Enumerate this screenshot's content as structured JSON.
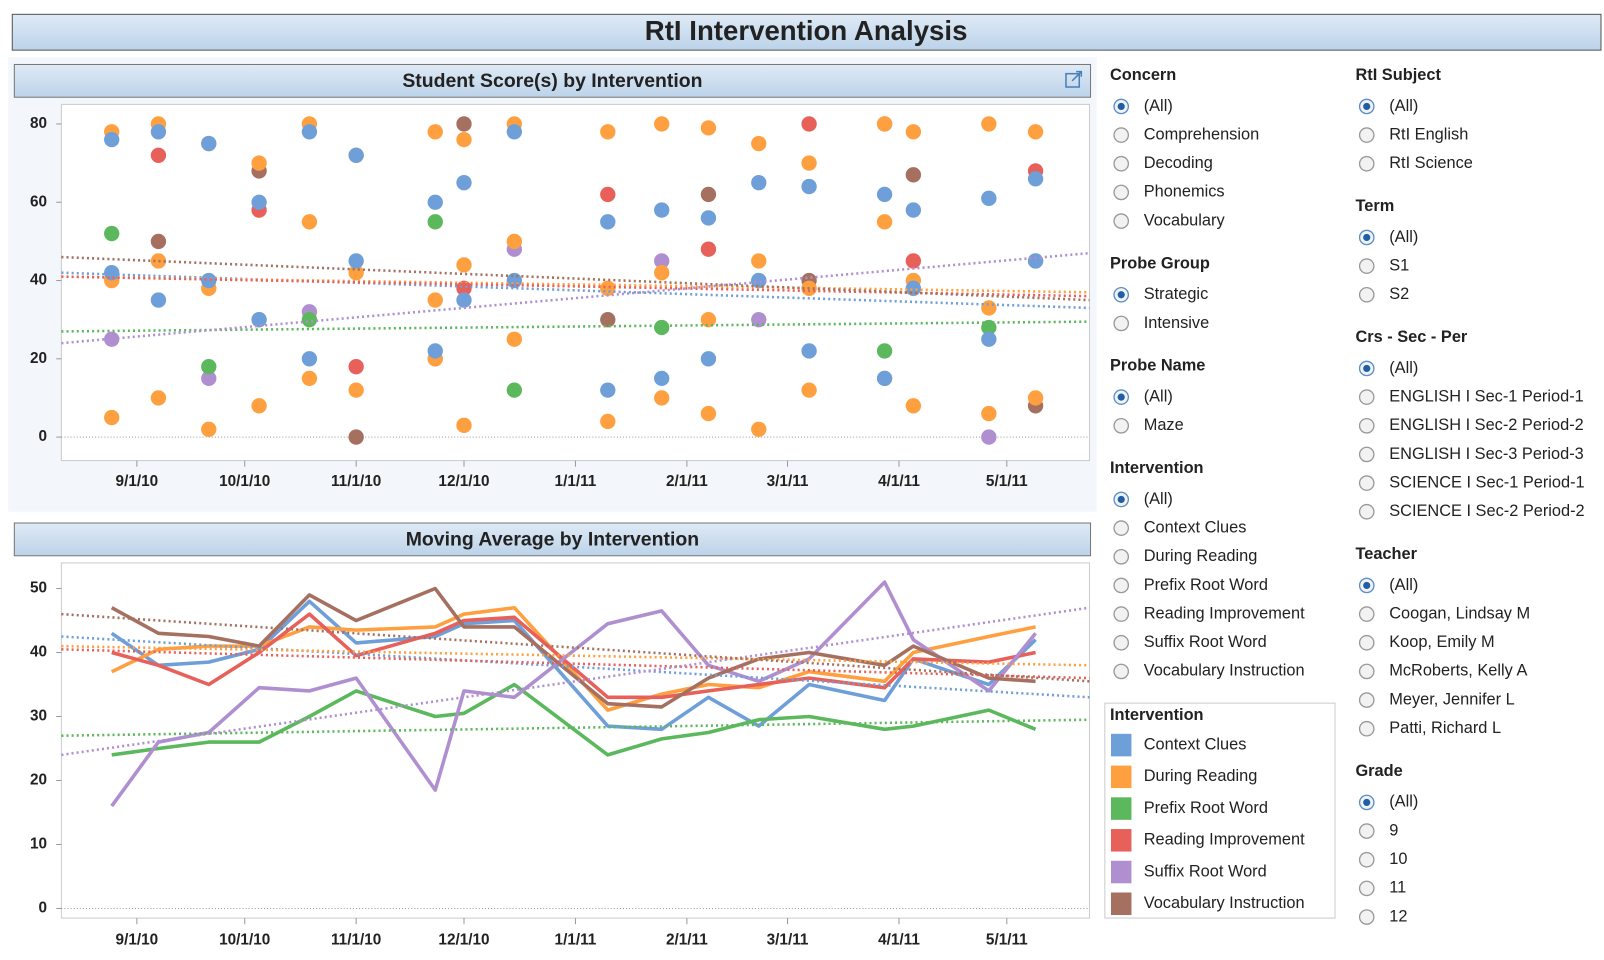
{
  "title": "RtI Intervention Analysis",
  "chart_data": [
    {
      "type": "scatter",
      "title": "Student Score(s) by Intervention",
      "xlim": [
        "2010-08-11",
        "2011-05-24"
      ],
      "xticks": [
        {
          "value": "2010-09-01",
          "label": "9/1/10"
        },
        {
          "value": "2010-10-01",
          "label": "10/1/10"
        },
        {
          "value": "2010-11-01",
          "label": "11/1/10"
        },
        {
          "value": "2010-12-01",
          "label": "12/1/10"
        },
        {
          "value": "2011-01-01",
          "label": "1/1/11"
        },
        {
          "value": "2011-02-01",
          "label": "2/1/11"
        },
        {
          "value": "2011-03-01",
          "label": "3/1/11"
        },
        {
          "value": "2011-04-01",
          "label": "4/1/11"
        },
        {
          "value": "2011-05-01",
          "label": "5/1/11"
        }
      ],
      "ylim": [
        -6,
        85
      ],
      "yticks": [
        0,
        20,
        40,
        60,
        80
      ],
      "series": [
        {
          "color": "#6f9fd8",
          "trend": [
            42,
            33
          ],
          "x": [
            "2010-08-25",
            "2010-08-25",
            "2010-09-07",
            "2010-09-07",
            "2010-09-21",
            "2010-09-21",
            "2010-10-05",
            "2010-10-05",
            "2010-10-19",
            "2010-10-19",
            "2010-11-01",
            "2010-11-01",
            "2010-11-23",
            "2010-11-23",
            "2010-12-01",
            "2010-12-01",
            "2010-12-15",
            "2010-12-15",
            "2011-01-10",
            "2011-01-10",
            "2011-01-25",
            "2011-01-25",
            "2011-02-07",
            "2011-02-07",
            "2011-02-21",
            "2011-02-21",
            "2011-03-07",
            "2011-03-07",
            "2011-03-28",
            "2011-03-28",
            "2011-04-05",
            "2011-04-05",
            "2011-04-26",
            "2011-04-26",
            "2011-05-09",
            "2011-05-09"
          ],
          "values": [
            76,
            42,
            78,
            35,
            75,
            40,
            60,
            30,
            78,
            20,
            72,
            45,
            60,
            22,
            65,
            35,
            78,
            40,
            55,
            12,
            58,
            15,
            56,
            20,
            65,
            40,
            64,
            22,
            62,
            15,
            58,
            38,
            61,
            25,
            66,
            45
          ]
        },
        {
          "color": "#ffa040",
          "trend": [
            41,
            37
          ],
          "x": [
            "2010-08-25",
            "2010-08-25",
            "2010-08-25",
            "2010-09-07",
            "2010-09-07",
            "2010-09-07",
            "2010-09-21",
            "2010-09-21",
            "2010-09-21",
            "2010-10-05",
            "2010-10-05",
            "2010-10-05",
            "2010-10-19",
            "2010-10-19",
            "2010-10-19",
            "2010-11-01",
            "2010-11-01",
            "2010-11-01",
            "2010-11-23",
            "2010-11-23",
            "2010-11-23",
            "2010-12-01",
            "2010-12-01",
            "2010-12-01",
            "2010-12-15",
            "2010-12-15",
            "2010-12-15",
            "2011-01-10",
            "2011-01-10",
            "2011-01-10",
            "2011-01-25",
            "2011-01-25",
            "2011-01-25",
            "2011-02-07",
            "2011-02-07",
            "2011-02-07",
            "2011-02-21",
            "2011-02-21",
            "2011-02-21",
            "2011-03-07",
            "2011-03-07",
            "2011-03-07",
            "2011-03-28",
            "2011-03-28",
            "2011-03-28",
            "2011-04-05",
            "2011-04-05",
            "2011-04-05",
            "2011-04-26",
            "2011-04-26",
            "2011-04-26",
            "2011-05-09",
            "2011-05-09",
            "2011-05-09"
          ],
          "values": [
            78,
            40,
            5,
            80,
            45,
            10,
            75,
            38,
            2,
            70,
            30,
            8,
            80,
            55,
            15,
            72,
            42,
            12,
            78,
            35,
            20,
            76,
            44,
            3,
            80,
            50,
            25,
            78,
            38,
            4,
            80,
            42,
            10,
            79,
            30,
            6,
            75,
            45,
            2,
            70,
            38,
            12,
            80,
            55,
            15,
            78,
            40,
            8,
            80,
            33,
            6,
            78,
            45,
            10
          ]
        },
        {
          "color": "#5cb85c",
          "trend": [
            27,
            29.5
          ],
          "x": [
            "2010-08-25",
            "2010-09-21",
            "2010-10-19",
            "2010-11-23",
            "2010-12-15",
            "2011-01-25",
            "2011-02-21",
            "2011-03-28",
            "2011-04-26"
          ],
          "values": [
            52,
            18,
            30,
            55,
            12,
            28,
            40,
            22,
            28
          ]
        },
        {
          "color": "#e8605a",
          "trend": [
            41,
            36
          ],
          "x": [
            "2010-09-07",
            "2010-10-05",
            "2010-11-01",
            "2010-12-01",
            "2011-01-10",
            "2011-02-07",
            "2011-03-07",
            "2011-04-05",
            "2011-05-09"
          ],
          "values": [
            72,
            58,
            18,
            38,
            62,
            48,
            80,
            45,
            68
          ]
        },
        {
          "color": "#b08fd0",
          "trend": [
            24,
            47
          ],
          "x": [
            "2010-08-25",
            "2010-09-21",
            "2010-10-19",
            "2010-11-23",
            "2010-12-15",
            "2011-01-25",
            "2011-02-21",
            "2011-03-28",
            "2011-04-26"
          ],
          "values": [
            25,
            15,
            32,
            20,
            48,
            45,
            30,
            80,
            0
          ]
        },
        {
          "color": "#a57060",
          "trend": [
            46,
            35
          ],
          "x": [
            "2010-09-07",
            "2010-10-05",
            "2010-11-01",
            "2010-12-01",
            "2011-01-10",
            "2011-02-07",
            "2011-03-07",
            "2011-04-05",
            "2011-05-09"
          ],
          "values": [
            50,
            68,
            0,
            80,
            30,
            62,
            40,
            67,
            8
          ]
        }
      ]
    },
    {
      "type": "line",
      "title": "Moving Average by Intervention",
      "x": [
        "2010-08-25",
        "2010-09-07",
        "2010-09-21",
        "2010-10-05",
        "2010-10-19",
        "2010-11-01",
        "2010-11-23",
        "2010-12-01",
        "2010-12-15",
        "2011-01-10",
        "2011-01-25",
        "2011-02-07",
        "2011-02-21",
        "2011-03-07",
        "2011-03-28",
        "2011-04-05",
        "2011-04-26",
        "2011-05-09"
      ],
      "xlim": [
        "2010-08-11",
        "2011-05-24"
      ],
      "xticks": [
        {
          "value": "2010-09-01",
          "label": "9/1/10"
        },
        {
          "value": "2010-10-01",
          "label": "10/1/10"
        },
        {
          "value": "2010-11-01",
          "label": "11/1/10"
        },
        {
          "value": "2010-12-01",
          "label": "12/1/10"
        },
        {
          "value": "2011-01-01",
          "label": "1/1/11"
        },
        {
          "value": "2011-02-01",
          "label": "2/1/11"
        },
        {
          "value": "2011-03-01",
          "label": "3/1/11"
        },
        {
          "value": "2011-04-01",
          "label": "4/1/11"
        },
        {
          "value": "2011-05-01",
          "label": "5/1/11"
        }
      ],
      "ylim": [
        -1.5,
        54
      ],
      "yticks": [
        0,
        10,
        20,
        30,
        40,
        50
      ],
      "legend_title": "Intervention",
      "series": [
        {
          "name": "Context Clues",
          "color": "#6f9fd8",
          "trend": [
            42.5,
            33
          ],
          "values": [
            43,
            38,
            38.5,
            40.5,
            48,
            41.5,
            42.5,
            44.5,
            45,
            28.5,
            28,
            33,
            28.5,
            35,
            32.5,
            39,
            35,
            42
          ]
        },
        {
          "name": "During Reading",
          "color": "#ffa040",
          "trend": [
            41,
            38
          ],
          "values": [
            37,
            40.5,
            41,
            41,
            44,
            43.5,
            44,
            46,
            47,
            31,
            33.5,
            35,
            34.5,
            37,
            35.5,
            40,
            42.5,
            44
          ]
        },
        {
          "name": "Prefix Root Word",
          "color": "#5cb85c",
          "trend": [
            27,
            29.5
          ],
          "values": [
            24,
            25,
            26,
            26,
            30,
            34,
            30,
            30.5,
            35,
            24,
            26.5,
            27.5,
            29.5,
            30,
            28,
            28.5,
            31,
            28
          ]
        },
        {
          "name": "Reading Improvement",
          "color": "#e8605a",
          "trend": [
            40.5,
            36
          ],
          "values": [
            40,
            38,
            35,
            40,
            46,
            39.5,
            43,
            45,
            45.5,
            33,
            33,
            34,
            35,
            36,
            34.5,
            39,
            38.5,
            40
          ]
        },
        {
          "name": "Suffix Root Word",
          "color": "#b08fd0",
          "trend": [
            24,
            47
          ],
          "values": [
            16,
            26,
            27.5,
            34.5,
            34,
            36,
            18.5,
            34,
            33,
            44.5,
            46.5,
            38,
            35.5,
            39,
            51,
            42,
            34,
            43
          ]
        },
        {
          "name": "Vocabulary Instruction",
          "color": "#a57060",
          "trend": [
            46,
            35.5
          ],
          "values": [
            47,
            43,
            42.5,
            41,
            49,
            45,
            50,
            44,
            44,
            32,
            31.5,
            36,
            39,
            40,
            38,
            41,
            36,
            35.5
          ]
        }
      ]
    }
  ],
  "filters": [
    {
      "title": "Concern",
      "selected": 0,
      "options": [
        "(All)",
        "Comprehension",
        "Decoding",
        "Phonemics",
        "Vocabulary"
      ]
    },
    {
      "title": "Probe Group",
      "selected": 0,
      "options": [
        "Strategic",
        "Intensive"
      ]
    },
    {
      "title": "Probe Name",
      "selected": 0,
      "options": [
        "(All)",
        "Maze"
      ]
    },
    {
      "title": "Intervention",
      "selected": 0,
      "options": [
        "(All)",
        "Context Clues",
        "During Reading",
        "Prefix Root Word",
        "Reading Improvement",
        "Suffix Root Word",
        "Vocabulary Instruction"
      ]
    },
    {
      "title": "RtI Subject",
      "selected": 0,
      "options": [
        "(All)",
        "RtI English",
        "RtI Science"
      ]
    },
    {
      "title": "Term",
      "selected": 0,
      "options": [
        "(All)",
        "S1",
        "S2"
      ]
    },
    {
      "title": "Crs - Sec - Per",
      "selected": 0,
      "options": [
        "(All)",
        "ENGLISH I Sec-1 Period-1",
        "ENGLISH I Sec-2 Period-2",
        "ENGLISH I Sec-3 Period-3",
        "SCIENCE I Sec-1 Period-1",
        "SCIENCE I Sec-2 Period-2"
      ]
    },
    {
      "title": "Teacher",
      "selected": 0,
      "options": [
        "(All)",
        "Coogan, Lindsay M",
        "Koop, Emily M",
        "McRoberts, Kelly A",
        "Meyer, Jennifer L",
        "Patti, Richard L"
      ]
    },
    {
      "title": "Grade",
      "selected": 0,
      "options": [
        "(All)",
        "9",
        "10",
        "11",
        "12"
      ]
    }
  ]
}
